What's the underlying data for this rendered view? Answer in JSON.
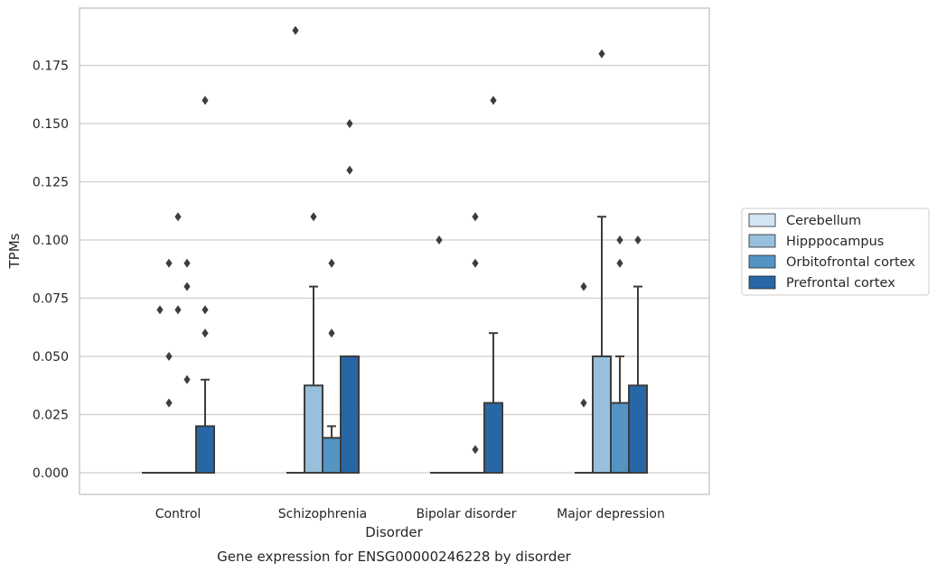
{
  "chart_data": {
    "type": "box",
    "title": "",
    "caption": "Gene expression for ENSG00000246228 by disorder",
    "xlabel": "Disorder",
    "ylabel": "TPMs",
    "ylim": [
      -0.009,
      0.198
    ],
    "yticks": [
      0.0,
      0.025,
      0.05,
      0.075,
      0.1,
      0.125,
      0.15,
      0.175
    ],
    "ytick_labels": [
      "0.000",
      "0.025",
      "0.050",
      "0.075",
      "0.100",
      "0.125",
      "0.150",
      "0.175"
    ],
    "grid": true,
    "legend_position": "right-center",
    "categories": [
      "Control",
      "Schizophrenia",
      "Bipolar disorder",
      "Major depression"
    ],
    "series": [
      {
        "name": "Cerebellum",
        "color": "#d3e4f3",
        "boxes": [
          {
            "q1": 0,
            "median": 0,
            "q3": 0,
            "whislo": 0,
            "whishi": 0,
            "fliers": []
          },
          {
            "q1": 0,
            "median": 0,
            "q3": 0,
            "whislo": 0,
            "whishi": 0,
            "fliers": [
              0.19
            ]
          },
          {
            "q1": 0,
            "median": 0,
            "q3": 0,
            "whislo": 0,
            "whishi": 0,
            "fliers": [
              0.1
            ]
          },
          {
            "q1": 0,
            "median": 0,
            "q3": 0,
            "whislo": 0,
            "whishi": 0,
            "fliers": [
              0.03,
              0.08
            ]
          }
        ]
      },
      {
        "name": "Hipppocampus",
        "color": "#97c0dc",
        "boxes": [
          {
            "q1": 0,
            "median": 0,
            "q3": 0,
            "whislo": 0,
            "whishi": 0,
            "fliers": [
              0.05,
              0.09,
              0.03
            ]
          },
          {
            "q1": 0,
            "median": 0,
            "q3": 0.0375,
            "whislo": 0,
            "whishi": 0.08,
            "fliers": [
              0.11
            ]
          },
          {
            "q1": 0,
            "median": 0,
            "q3": 0,
            "whislo": 0,
            "whishi": 0,
            "fliers": []
          },
          {
            "q1": 0,
            "median": 0,
            "q3": 0.05,
            "whislo": 0,
            "whishi": 0.11,
            "fliers": [
              0.18
            ]
          }
        ]
      },
      {
        "name": "Orbitofrontal cortex",
        "color": "#5494c4",
        "boxes": [
          {
            "q1": 0,
            "median": 0,
            "q3": 0,
            "whislo": 0,
            "whishi": 0,
            "fliers": [
              0.04,
              0.08,
              0.09
            ]
          },
          {
            "q1": 0,
            "median": 0,
            "q3": 0.015,
            "whislo": 0,
            "whishi": 0.02,
            "fliers": [
              0.06,
              0.09
            ]
          },
          {
            "q1": 0,
            "median": 0,
            "q3": 0,
            "whislo": 0,
            "whishi": 0,
            "fliers": [
              0.01,
              0.09,
              0.11
            ]
          },
          {
            "q1": 0,
            "median": 0,
            "q3": 0.03,
            "whislo": 0,
            "whishi": 0.05,
            "fliers": [
              0.09,
              0.1
            ]
          }
        ]
      },
      {
        "name": "Prefrontal cortex",
        "color": "#2866a5",
        "boxes": [
          {
            "q1": 0,
            "median": 0,
            "q3": 0.02,
            "whislo": 0,
            "whishi": 0.04,
            "fliers": [
              0.06,
              0.07,
              0.16
            ]
          },
          {
            "q1": 0,
            "median": 0,
            "q3": 0.05,
            "whislo": 0,
            "whishi": 0.05,
            "fliers": [
              0.13,
              0.15
            ]
          },
          {
            "q1": 0,
            "median": 0,
            "q3": 0.03,
            "whislo": 0,
            "whishi": 0.06,
            "fliers": [
              0.16
            ]
          },
          {
            "q1": 0,
            "median": 0,
            "q3": 0.0375,
            "whislo": 0,
            "whishi": 0.08,
            "fliers": [
              0.1
            ]
          }
        ]
      }
    ],
    "extra_fliers": [
      {
        "category": 0,
        "between_series": [
          0,
          1
        ],
        "value": 0.07
      },
      {
        "category": 0,
        "between_series": [
          1,
          2
        ],
        "value": 0.11
      },
      {
        "category": 0,
        "between_series": [
          1,
          2
        ],
        "value": 0.07
      }
    ]
  }
}
